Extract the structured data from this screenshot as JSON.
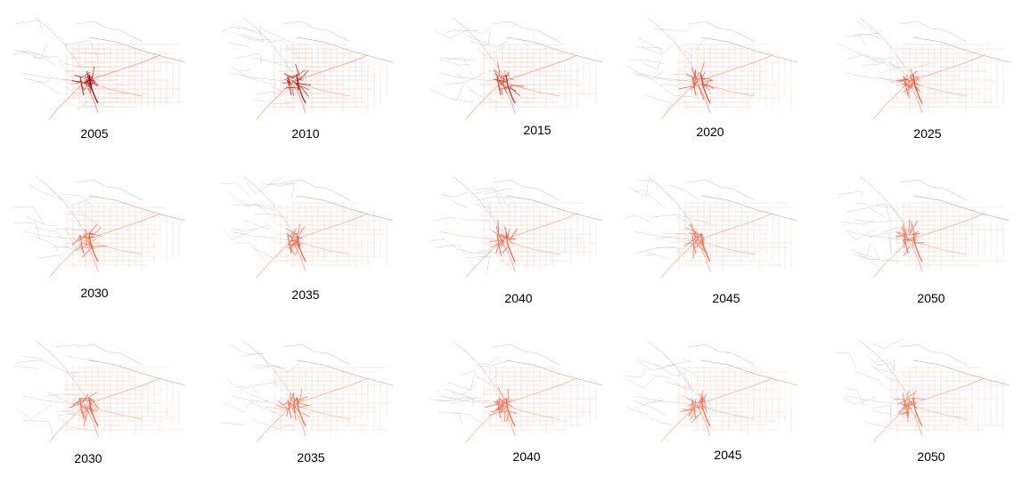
{
  "colors": {
    "road_base": "#b8b8b8",
    "flow_low": "#fcbba1",
    "flow_mid": "#ef6548",
    "flow_high": "#99000d"
  },
  "rows": [
    {
      "panels": [
        {
          "year": "2005"
        },
        {
          "year": "2010"
        },
        {
          "year": "2015"
        },
        {
          "year": "2020"
        },
        {
          "year": "2025"
        }
      ]
    },
    {
      "panels": [
        {
          "year": "2030"
        },
        {
          "year": "2035"
        },
        {
          "year": "2040"
        },
        {
          "year": "2045"
        },
        {
          "year": "2050"
        }
      ]
    },
    {
      "panels": [
        {
          "year": "2030"
        },
        {
          "year": "2035"
        },
        {
          "year": "2040"
        },
        {
          "year": "2045"
        },
        {
          "year": "2050"
        }
      ]
    }
  ]
}
